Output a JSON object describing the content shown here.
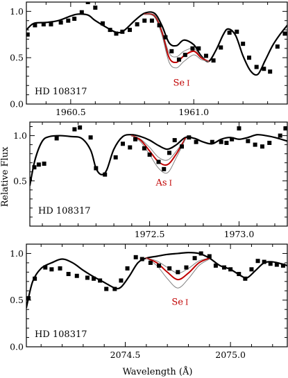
{
  "figure": {
    "ylabel": "Relative Flux",
    "xlabel": "Wavelength (Å)"
  },
  "colors": {
    "observed": "#000000",
    "best_fit": "#c00000",
    "bracket": "#808080",
    "no_element": "#000000",
    "axis": "#000000"
  },
  "chart_data": [
    {
      "type": "line",
      "star": "HD 108317",
      "line_label": "Se I",
      "label_species": "Se",
      "label_ion": "I",
      "xlim": [
        1960.32,
        1961.38
      ],
      "ylim": [
        0.0,
        1.1
      ],
      "x_ticks": [
        1960.5,
        1961.0
      ],
      "x_minor_step": 0.1,
      "y_ticks": [
        0.0,
        0.5,
        1.0
      ],
      "y_tick_labels": [
        "0.0",
        "0.5",
        "1.0"
      ],
      "y_minor_step": 0.1,
      "observed_points": {
        "x": [
          1960.325,
          1960.355,
          1960.39,
          1960.42,
          1960.46,
          1960.49,
          1960.515,
          1960.545,
          1960.57,
          1960.6,
          1960.63,
          1960.66,
          1960.685,
          1960.71,
          1960.74,
          1960.77,
          1960.8,
          1960.83,
          1960.86,
          1960.885,
          1960.91,
          1960.94,
          1960.965,
          1960.995,
          1961.02,
          1961.05,
          1961.08,
          1961.11,
          1961.145,
          1961.175,
          1961.2,
          1961.225,
          1961.255,
          1961.285,
          1961.31,
          1961.34,
          1961.37
        ],
        "y": [
          0.75,
          0.85,
          0.86,
          0.86,
          0.88,
          0.9,
          0.92,
          0.99,
          1.1,
          1.04,
          0.87,
          0.8,
          0.76,
          0.78,
          0.8,
          0.86,
          0.9,
          0.9,
          0.85,
          0.72,
          0.57,
          0.48,
          0.53,
          0.6,
          0.6,
          0.52,
          0.47,
          0.61,
          0.77,
          0.78,
          0.65,
          0.5,
          0.4,
          0.38,
          0.35,
          0.62,
          0.76
        ]
      },
      "series": [
        {
          "role": "no-element",
          "x": [
            1960.32,
            1960.35,
            1960.4,
            1960.45,
            1960.5,
            1960.53,
            1960.57,
            1960.6,
            1960.65,
            1960.69,
            1960.72,
            1960.76,
            1960.8,
            1960.84,
            1960.87,
            1960.9,
            1960.93,
            1960.96,
            1961.0,
            1961.03,
            1961.06,
            1961.09,
            1961.12,
            1961.14,
            1961.17,
            1961.2,
            1961.23,
            1961.26,
            1961.29,
            1961.32,
            1961.35,
            1961.38
          ],
          "y": [
            0.8,
            0.87,
            0.88,
            0.9,
            0.95,
            0.97,
            0.96,
            0.9,
            0.82,
            0.77,
            0.8,
            0.9,
            0.98,
            0.98,
            0.85,
            0.66,
            0.63,
            0.69,
            0.64,
            0.52,
            0.46,
            0.58,
            0.75,
            0.81,
            0.74,
            0.52,
            0.36,
            0.32,
            0.47,
            0.63,
            0.75,
            0.85
          ]
        },
        {
          "role": "bracket-low",
          "x": [
            1960.8,
            1960.84,
            1960.87,
            1960.9,
            1960.93,
            1960.96,
            1961.0,
            1961.03,
            1961.06
          ],
          "y": [
            0.97,
            0.96,
            0.8,
            0.55,
            0.51,
            0.57,
            0.6,
            0.51,
            0.46
          ]
        },
        {
          "role": "best-fit",
          "x": [
            1960.8,
            1960.84,
            1960.87,
            1960.9,
            1960.93,
            1960.96,
            1961.0,
            1961.03,
            1961.06
          ],
          "y": [
            0.97,
            0.95,
            0.78,
            0.5,
            0.45,
            0.52,
            0.57,
            0.5,
            0.46
          ]
        },
        {
          "role": "bracket-high",
          "x": [
            1960.8,
            1960.84,
            1960.87,
            1960.9,
            1960.93,
            1960.96,
            1961.0,
            1961.03,
            1961.06
          ],
          "y": [
            0.97,
            0.94,
            0.75,
            0.45,
            0.39,
            0.46,
            0.53,
            0.48,
            0.46
          ]
        }
      ],
      "label_pos": [
        1960.95,
        0.2
      ]
    },
    {
      "type": "line",
      "star": "HD 108317",
      "line_label": "As I",
      "label_species": "As",
      "label_ion": "I",
      "xlim": [
        1971.83,
        1973.27
      ],
      "ylim": [
        0.0,
        1.15
      ],
      "x_ticks": [
        1972.5,
        1973.0
      ],
      "x_minor_step": 0.1,
      "y_ticks": [
        0.5,
        1.0
      ],
      "y_tick_labels": [
        "0.5",
        "1.0"
      ],
      "y_minor_step": 0.1,
      "observed_points": {
        "x": [
          1971.83,
          1971.855,
          1971.88,
          1971.91,
          1971.98,
          1972.08,
          1972.11,
          1972.17,
          1972.2,
          1972.25,
          1972.31,
          1972.35,
          1972.39,
          1972.42,
          1972.47,
          1972.5,
          1972.55,
          1972.58,
          1972.61,
          1972.64,
          1972.68,
          1972.72,
          1972.76,
          1972.85,
          1972.9,
          1972.93,
          1972.96,
          1973.0,
          1973.05,
          1973.09,
          1973.13,
          1973.17,
          1973.23,
          1973.26
        ],
        "y": [
          0.52,
          0.65,
          0.68,
          0.69,
          0.97,
          1.07,
          1.09,
          0.98,
          0.64,
          0.57,
          0.76,
          0.91,
          0.87,
          0.96,
          0.86,
          0.79,
          0.71,
          0.63,
          0.81,
          0.95,
          0.88,
          0.98,
          0.93,
          0.93,
          0.93,
          0.92,
          0.96,
          1.08,
          0.94,
          0.9,
          0.88,
          0.92,
          1.0,
          1.08
        ]
      },
      "series": [
        {
          "role": "no-element",
          "x": [
            1971.83,
            1971.86,
            1971.9,
            1971.94,
            1972.0,
            1972.06,
            1972.12,
            1972.17,
            1972.2,
            1972.23,
            1972.26,
            1972.3,
            1972.35,
            1972.4,
            1972.45,
            1972.5,
            1972.55,
            1972.6,
            1972.65,
            1972.7,
            1972.75,
            1972.8,
            1972.85,
            1972.9,
            1972.95,
            1973.0,
            1973.05,
            1973.1,
            1973.15,
            1973.2,
            1973.27
          ],
          "y": [
            0.45,
            0.74,
            0.94,
            0.99,
            1.0,
            0.99,
            0.97,
            0.84,
            0.64,
            0.57,
            0.62,
            0.85,
            0.99,
            1.01,
            0.99,
            0.95,
            0.89,
            0.85,
            0.9,
            0.98,
            0.97,
            0.93,
            0.91,
            0.96,
            0.98,
            0.96,
            0.98,
            1.01,
            1.0,
            0.98,
            0.94
          ]
        },
        {
          "role": "bracket-low",
          "x": [
            1972.4,
            1972.45,
            1972.5,
            1972.55,
            1972.6,
            1972.65,
            1972.7
          ],
          "y": [
            1.0,
            0.96,
            0.87,
            0.76,
            0.73,
            0.83,
            0.97
          ]
        },
        {
          "role": "best-fit",
          "x": [
            1972.4,
            1972.45,
            1972.5,
            1972.55,
            1972.6,
            1972.65,
            1972.7
          ],
          "y": [
            1.0,
            0.95,
            0.83,
            0.71,
            0.68,
            0.8,
            0.97
          ]
        },
        {
          "role": "bracket-high",
          "x": [
            1972.4,
            1972.45,
            1972.5,
            1972.55,
            1972.6,
            1972.65,
            1972.7
          ],
          "y": [
            1.0,
            0.93,
            0.79,
            0.64,
            0.59,
            0.76,
            0.96
          ]
        }
      ],
      "label_pos": [
        1972.58,
        0.45
      ]
    },
    {
      "type": "line",
      "star": "HD 108317",
      "line_label": "Se I",
      "label_species": "Se",
      "label_ion": "I",
      "xlim": [
        2074.03,
        2075.27
      ],
      "ylim": [
        0.0,
        1.1
      ],
      "x_ticks": [
        2074.5,
        2075.0
      ],
      "x_minor_step": 0.1,
      "y_ticks": [
        0.0,
        0.5,
        1.0
      ],
      "y_tick_labels": [
        "0.0",
        "0.5",
        "1.0"
      ],
      "y_minor_step": 0.1,
      "observed_points": {
        "x": [
          2074.04,
          2074.07,
          2074.12,
          2074.15,
          2074.19,
          2074.23,
          2074.27,
          2074.32,
          2074.35,
          2074.38,
          2074.41,
          2074.45,
          2074.48,
          2074.51,
          2074.55,
          2074.58,
          2074.62,
          2074.66,
          2074.71,
          2074.75,
          2074.79,
          2074.83,
          2074.86,
          2074.9,
          2074.93,
          2074.97,
          2075.0,
          2075.04,
          2075.07,
          2075.1,
          2075.13,
          2075.16,
          2075.19,
          2075.22,
          2075.25
        ],
        "y": [
          0.52,
          0.73,
          0.85,
          0.83,
          0.84,
          0.78,
          0.76,
          0.74,
          0.73,
          0.71,
          0.62,
          0.62,
          0.71,
          0.84,
          0.96,
          0.94,
          0.9,
          0.87,
          0.84,
          0.8,
          0.85,
          0.95,
          1.0,
          0.97,
          0.87,
          0.85,
          0.83,
          0.78,
          0.73,
          0.83,
          0.92,
          0.91,
          0.89,
          0.88,
          0.87
        ]
      },
      "series": [
        {
          "role": "no-element",
          "x": [
            2074.03,
            2074.06,
            2074.1,
            2074.15,
            2074.2,
            2074.25,
            2074.3,
            2074.35,
            2074.4,
            2074.45,
            2074.48,
            2074.52,
            2074.56,
            2074.6,
            2074.65,
            2074.7,
            2074.75,
            2074.8,
            2074.85,
            2074.9,
            2074.95,
            2075.0,
            2075.05,
            2075.08,
            2075.12,
            2075.16,
            2075.2,
            2075.24,
            2075.27
          ],
          "y": [
            0.42,
            0.7,
            0.84,
            0.9,
            0.94,
            0.9,
            0.82,
            0.75,
            0.69,
            0.63,
            0.64,
            0.76,
            0.9,
            0.95,
            0.97,
            0.99,
            1.0,
            1.01,
            1.0,
            0.95,
            0.87,
            0.83,
            0.76,
            0.74,
            0.82,
            0.9,
            0.91,
            0.89,
            0.87
          ]
        },
        {
          "role": "bracket-low",
          "x": [
            2074.6,
            2074.65,
            2074.7,
            2074.75,
            2074.8,
            2074.85,
            2074.9
          ],
          "y": [
            0.95,
            0.92,
            0.85,
            0.79,
            0.84,
            0.92,
            0.95
          ]
        },
        {
          "role": "best-fit",
          "x": [
            2074.6,
            2074.65,
            2074.7,
            2074.75,
            2074.8,
            2074.85,
            2074.9
          ],
          "y": [
            0.95,
            0.9,
            0.8,
            0.72,
            0.79,
            0.9,
            0.95
          ]
        },
        {
          "role": "bracket-high",
          "x": [
            2074.6,
            2074.65,
            2074.7,
            2074.75,
            2074.8,
            2074.85,
            2074.9
          ],
          "y": [
            0.95,
            0.87,
            0.73,
            0.63,
            0.73,
            0.87,
            0.94
          ]
        }
      ],
      "label_pos": [
        2074.76,
        0.45
      ]
    }
  ]
}
